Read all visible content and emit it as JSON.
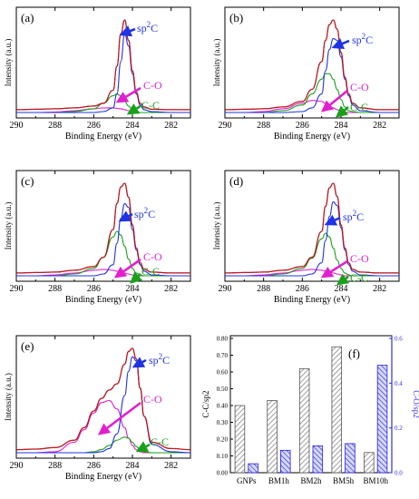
{
  "chart_data": [
    {
      "type": "line",
      "panel": "(a)",
      "xlabel": "Binding Energy (eV)",
      "ylabel": "Intensity (a.u.)",
      "xlim": [
        290,
        281
      ],
      "xticks": [
        290,
        288,
        286,
        284,
        282
      ],
      "x": [
        290,
        289,
        288,
        287,
        286,
        285.5,
        285,
        284.8,
        284.6,
        284.4,
        284.2,
        284,
        283.8,
        283.6,
        283.4,
        283,
        282,
        281
      ],
      "series": [
        {
          "name": "raw",
          "color": "#111111",
          "values": [
            0.03,
            0.035,
            0.04,
            0.05,
            0.07,
            0.1,
            0.24,
            0.5,
            0.85,
            1.0,
            0.78,
            0.45,
            0.22,
            0.1,
            0.06,
            0.035,
            0.03,
            0.03
          ]
        },
        {
          "name": "fit",
          "color": "#d0101a",
          "values": [
            0.03,
            0.035,
            0.04,
            0.05,
            0.07,
            0.1,
            0.24,
            0.5,
            0.85,
            1.0,
            0.78,
            0.45,
            0.22,
            0.1,
            0.06,
            0.035,
            0.03,
            0.03
          ]
        },
        {
          "name": "sp²C",
          "color": "#1f33e6",
          "values": [
            0,
            0,
            0,
            0,
            0,
            0.01,
            0.05,
            0.2,
            0.55,
            0.85,
            0.72,
            0.42,
            0.2,
            0.08,
            0.03,
            0.01,
            0,
            0
          ]
        },
        {
          "name": "C-C",
          "color": "#19a019",
          "values": [
            0,
            0,
            0,
            0.01,
            0.04,
            0.1,
            0.18,
            0.2,
            0.18,
            0.12,
            0.07,
            0.03,
            0.01,
            0,
            0,
            0,
            0,
            0
          ]
        },
        {
          "name": "C-O",
          "color": "#e020d0",
          "values": [
            0,
            0,
            0.005,
            0.02,
            0.04,
            0.05,
            0.05,
            0.045,
            0.04,
            0.03,
            0.02,
            0.01,
            0.005,
            0,
            0,
            0,
            0,
            0
          ]
        }
      ],
      "annotations": [
        {
          "label": "sp²C",
          "color": "#1f33e6"
        },
        {
          "label": "C-O",
          "color": "#e020d0"
        },
        {
          "label": "C-C",
          "color": "#19a019"
        }
      ]
    },
    {
      "type": "line",
      "panel": "(b)",
      "xlabel": "Binding Energy (eV)",
      "ylabel": "Intensity (a.u.)",
      "xlim": [
        290,
        281
      ],
      "xticks": [
        290,
        288,
        286,
        284,
        282
      ],
      "x": [
        290,
        289,
        288,
        287,
        286,
        285.5,
        285,
        284.8,
        284.6,
        284.4,
        284.2,
        284,
        283.8,
        283.6,
        283.4,
        283,
        282,
        281
      ],
      "series": [
        {
          "name": "raw",
          "color": "#111111",
          "values": [
            0.03,
            0.035,
            0.04,
            0.06,
            0.12,
            0.25,
            0.55,
            0.78,
            0.95,
            1.0,
            0.9,
            0.65,
            0.38,
            0.2,
            0.1,
            0.05,
            0.03,
            0.03
          ]
        },
        {
          "name": "fit",
          "color": "#d0101a",
          "values": [
            0.03,
            0.035,
            0.04,
            0.06,
            0.12,
            0.25,
            0.55,
            0.78,
            0.95,
            1.0,
            0.9,
            0.65,
            0.38,
            0.2,
            0.1,
            0.05,
            0.03,
            0.03
          ]
        },
        {
          "name": "sp²C",
          "color": "#1f33e6",
          "values": [
            0,
            0,
            0,
            0,
            0.01,
            0.05,
            0.2,
            0.45,
            0.68,
            0.8,
            0.78,
            0.6,
            0.36,
            0.18,
            0.08,
            0.02,
            0,
            0
          ]
        },
        {
          "name": "C-C",
          "color": "#19a019",
          "values": [
            0,
            0,
            0,
            0.02,
            0.08,
            0.2,
            0.36,
            0.42,
            0.42,
            0.36,
            0.25,
            0.14,
            0.06,
            0.02,
            0.01,
            0,
            0,
            0
          ]
        },
        {
          "name": "C-O",
          "color": "#e020d0",
          "values": [
            0,
            0,
            0.01,
            0.04,
            0.1,
            0.13,
            0.12,
            0.1,
            0.07,
            0.05,
            0.03,
            0.015,
            0.005,
            0,
            0,
            0,
            0,
            0
          ]
        }
      ],
      "annotations": [
        {
          "label": "sp²C",
          "color": "#1f33e6"
        },
        {
          "label": "C-O",
          "color": "#e020d0"
        },
        {
          "label": "C-C",
          "color": "#19a019"
        }
      ]
    },
    {
      "type": "line",
      "panel": "(c)",
      "xlabel": "Binding Energy (eV)",
      "ylabel": "Intensity (a.u.)",
      "xlim": [
        290,
        281
      ],
      "xticks": [
        290,
        288,
        286,
        284,
        282
      ],
      "x": [
        290,
        289,
        288,
        287,
        286,
        285.5,
        285,
        284.8,
        284.6,
        284.4,
        284.2,
        284,
        283.8,
        283.6,
        283.4,
        283,
        282,
        281
      ],
      "series": [
        {
          "name": "raw",
          "color": "#111111",
          "values": [
            0.03,
            0.035,
            0.04,
            0.06,
            0.1,
            0.2,
            0.5,
            0.78,
            0.96,
            1.0,
            0.85,
            0.55,
            0.3,
            0.14,
            0.07,
            0.04,
            0.03,
            0.03
          ]
        },
        {
          "name": "fit",
          "color": "#d0101a",
          "values": [
            0.03,
            0.035,
            0.04,
            0.06,
            0.1,
            0.2,
            0.5,
            0.78,
            0.96,
            1.0,
            0.85,
            0.55,
            0.3,
            0.14,
            0.07,
            0.04,
            0.03,
            0.03
          ]
        },
        {
          "name": "sp²C",
          "color": "#1f33e6",
          "values": [
            0,
            0,
            0,
            0,
            0,
            0.02,
            0.12,
            0.35,
            0.62,
            0.78,
            0.74,
            0.5,
            0.28,
            0.12,
            0.05,
            0.01,
            0,
            0
          ]
        },
        {
          "name": "C-C",
          "color": "#19a019",
          "values": [
            0,
            0,
            0,
            0.02,
            0.08,
            0.2,
            0.42,
            0.48,
            0.44,
            0.32,
            0.18,
            0.08,
            0.03,
            0.01,
            0,
            0,
            0,
            0
          ]
        },
        {
          "name": "C-O",
          "color": "#e020d0",
          "values": [
            0,
            0,
            0.01,
            0.03,
            0.06,
            0.07,
            0.06,
            0.05,
            0.04,
            0.03,
            0.02,
            0.01,
            0,
            0,
            0,
            0,
            0,
            0
          ]
        }
      ],
      "annotations": [
        {
          "label": "sp²C",
          "color": "#1f33e6"
        },
        {
          "label": "C-O",
          "color": "#e020d0"
        },
        {
          "label": "C-C",
          "color": "#19a019"
        }
      ]
    },
    {
      "type": "line",
      "panel": "(d)",
      "xlabel": "Binding Energy (eV)",
      "ylabel": "Intensity (a.u.)",
      "xlim": [
        290,
        281
      ],
      "xticks": [
        290,
        288,
        286,
        284,
        282
      ],
      "x": [
        290,
        289,
        288,
        287,
        286,
        285.5,
        285,
        284.8,
        284.6,
        284.4,
        284.2,
        284,
        283.8,
        283.6,
        283.4,
        283,
        282,
        281
      ],
      "series": [
        {
          "name": "raw",
          "color": "#111111",
          "values": [
            0.03,
            0.035,
            0.04,
            0.06,
            0.1,
            0.2,
            0.48,
            0.75,
            0.95,
            1.0,
            0.86,
            0.55,
            0.3,
            0.14,
            0.07,
            0.04,
            0.03,
            0.03
          ]
        },
        {
          "name": "fit",
          "color": "#d0101a",
          "values": [
            0.03,
            0.035,
            0.04,
            0.06,
            0.1,
            0.2,
            0.48,
            0.75,
            0.95,
            1.0,
            0.86,
            0.55,
            0.3,
            0.14,
            0.07,
            0.04,
            0.03,
            0.03
          ]
        },
        {
          "name": "sp²C",
          "color": "#1f33e6",
          "values": [
            0,
            0,
            0,
            0,
            0,
            0.02,
            0.14,
            0.38,
            0.64,
            0.8,
            0.76,
            0.52,
            0.28,
            0.12,
            0.05,
            0.01,
            0,
            0
          ]
        },
        {
          "name": "C-C",
          "color": "#19a019",
          "values": [
            0,
            0,
            0,
            0.02,
            0.08,
            0.19,
            0.4,
            0.46,
            0.42,
            0.3,
            0.17,
            0.08,
            0.03,
            0.01,
            0,
            0,
            0,
            0
          ]
        },
        {
          "name": "C-O",
          "color": "#e020d0",
          "values": [
            0,
            0,
            0.01,
            0.03,
            0.06,
            0.07,
            0.06,
            0.05,
            0.04,
            0.03,
            0.02,
            0.01,
            0,
            0,
            0,
            0,
            0,
            0
          ]
        }
      ],
      "annotations": [
        {
          "label": "sp²C",
          "color": "#1f33e6"
        },
        {
          "label": "C-O",
          "color": "#e020d0"
        },
        {
          "label": "C-C",
          "color": "#19a019"
        }
      ]
    },
    {
      "type": "line",
      "panel": "(e)",
      "xlabel": "Binding Energy (eV)",
      "ylabel": "Intensity (a.u.)",
      "xlim": [
        290,
        281
      ],
      "xticks": [
        290,
        288,
        286,
        284,
        282
      ],
      "x": [
        290,
        289,
        288,
        287,
        286.5,
        286,
        285.6,
        285.2,
        284.8,
        284.4,
        284.2,
        284,
        283.8,
        283.6,
        283.4,
        283,
        282,
        281
      ],
      "series": [
        {
          "name": "raw",
          "color": "#111111",
          "values": [
            0.03,
            0.035,
            0.05,
            0.12,
            0.24,
            0.4,
            0.52,
            0.6,
            0.66,
            0.85,
            0.97,
            1.0,
            0.9,
            0.62,
            0.35,
            0.1,
            0.04,
            0.03
          ]
        },
        {
          "name": "fit",
          "color": "#d0101a",
          "values": [
            0.03,
            0.035,
            0.05,
            0.12,
            0.24,
            0.4,
            0.52,
            0.6,
            0.66,
            0.85,
            0.97,
            1.0,
            0.9,
            0.62,
            0.35,
            0.1,
            0.04,
            0.03
          ]
        },
        {
          "name": "sp²C",
          "color": "#1f33e6",
          "values": [
            0,
            0,
            0,
            0,
            0,
            0,
            0.01,
            0.04,
            0.18,
            0.55,
            0.78,
            0.92,
            0.88,
            0.62,
            0.35,
            0.08,
            0.01,
            0
          ]
        },
        {
          "name": "C-O",
          "color": "#e020d0",
          "values": [
            0,
            0,
            0.01,
            0.1,
            0.22,
            0.38,
            0.48,
            0.5,
            0.42,
            0.24,
            0.14,
            0.07,
            0.03,
            0.01,
            0,
            0,
            0,
            0
          ]
        },
        {
          "name": "C-C",
          "color": "#19a019",
          "values": [
            0,
            0,
            0,
            0,
            0,
            0.01,
            0.03,
            0.07,
            0.12,
            0.15,
            0.14,
            0.1,
            0.06,
            0.03,
            0.01,
            0,
            0,
            0
          ]
        }
      ],
      "annotations": [
        {
          "label": "sp²C",
          "color": "#1f33e6"
        },
        {
          "label": "C-O",
          "color": "#e020d0"
        },
        {
          "label": "C-C",
          "color": "#19a019"
        }
      ]
    },
    {
      "type": "bar",
      "panel": "(f)",
      "categories": [
        "GNPs",
        "BM1h",
        "BM2h",
        "BM5h",
        "BM10h"
      ],
      "series": [
        {
          "name": "C-C/sp2",
          "axis": "left",
          "color": "#555555",
          "fill": "hatched-grey",
          "values": [
            0.4,
            0.43,
            0.62,
            0.75,
            0.12
          ]
        },
        {
          "name": "C-O/sp2",
          "axis": "right",
          "color": "#2020e0",
          "fill": "hatched-blue",
          "values": [
            0.04,
            0.1,
            0.12,
            0.13,
            0.48
          ]
        }
      ],
      "ylabel": "C-C/sp2",
      "ylabel_right": "C-O/sp2",
      "ylim": [
        0,
        0.8
      ],
      "ylim_right": [
        0,
        0.6
      ],
      "yticks": [
        "0.00",
        "0.10",
        "0.20",
        "0.30",
        "0.40",
        "0.50",
        "0.60",
        "0.70",
        "0.80"
      ],
      "yticks_right": [
        "0.0",
        "0.2",
        "0.4",
        "0.6"
      ]
    }
  ]
}
